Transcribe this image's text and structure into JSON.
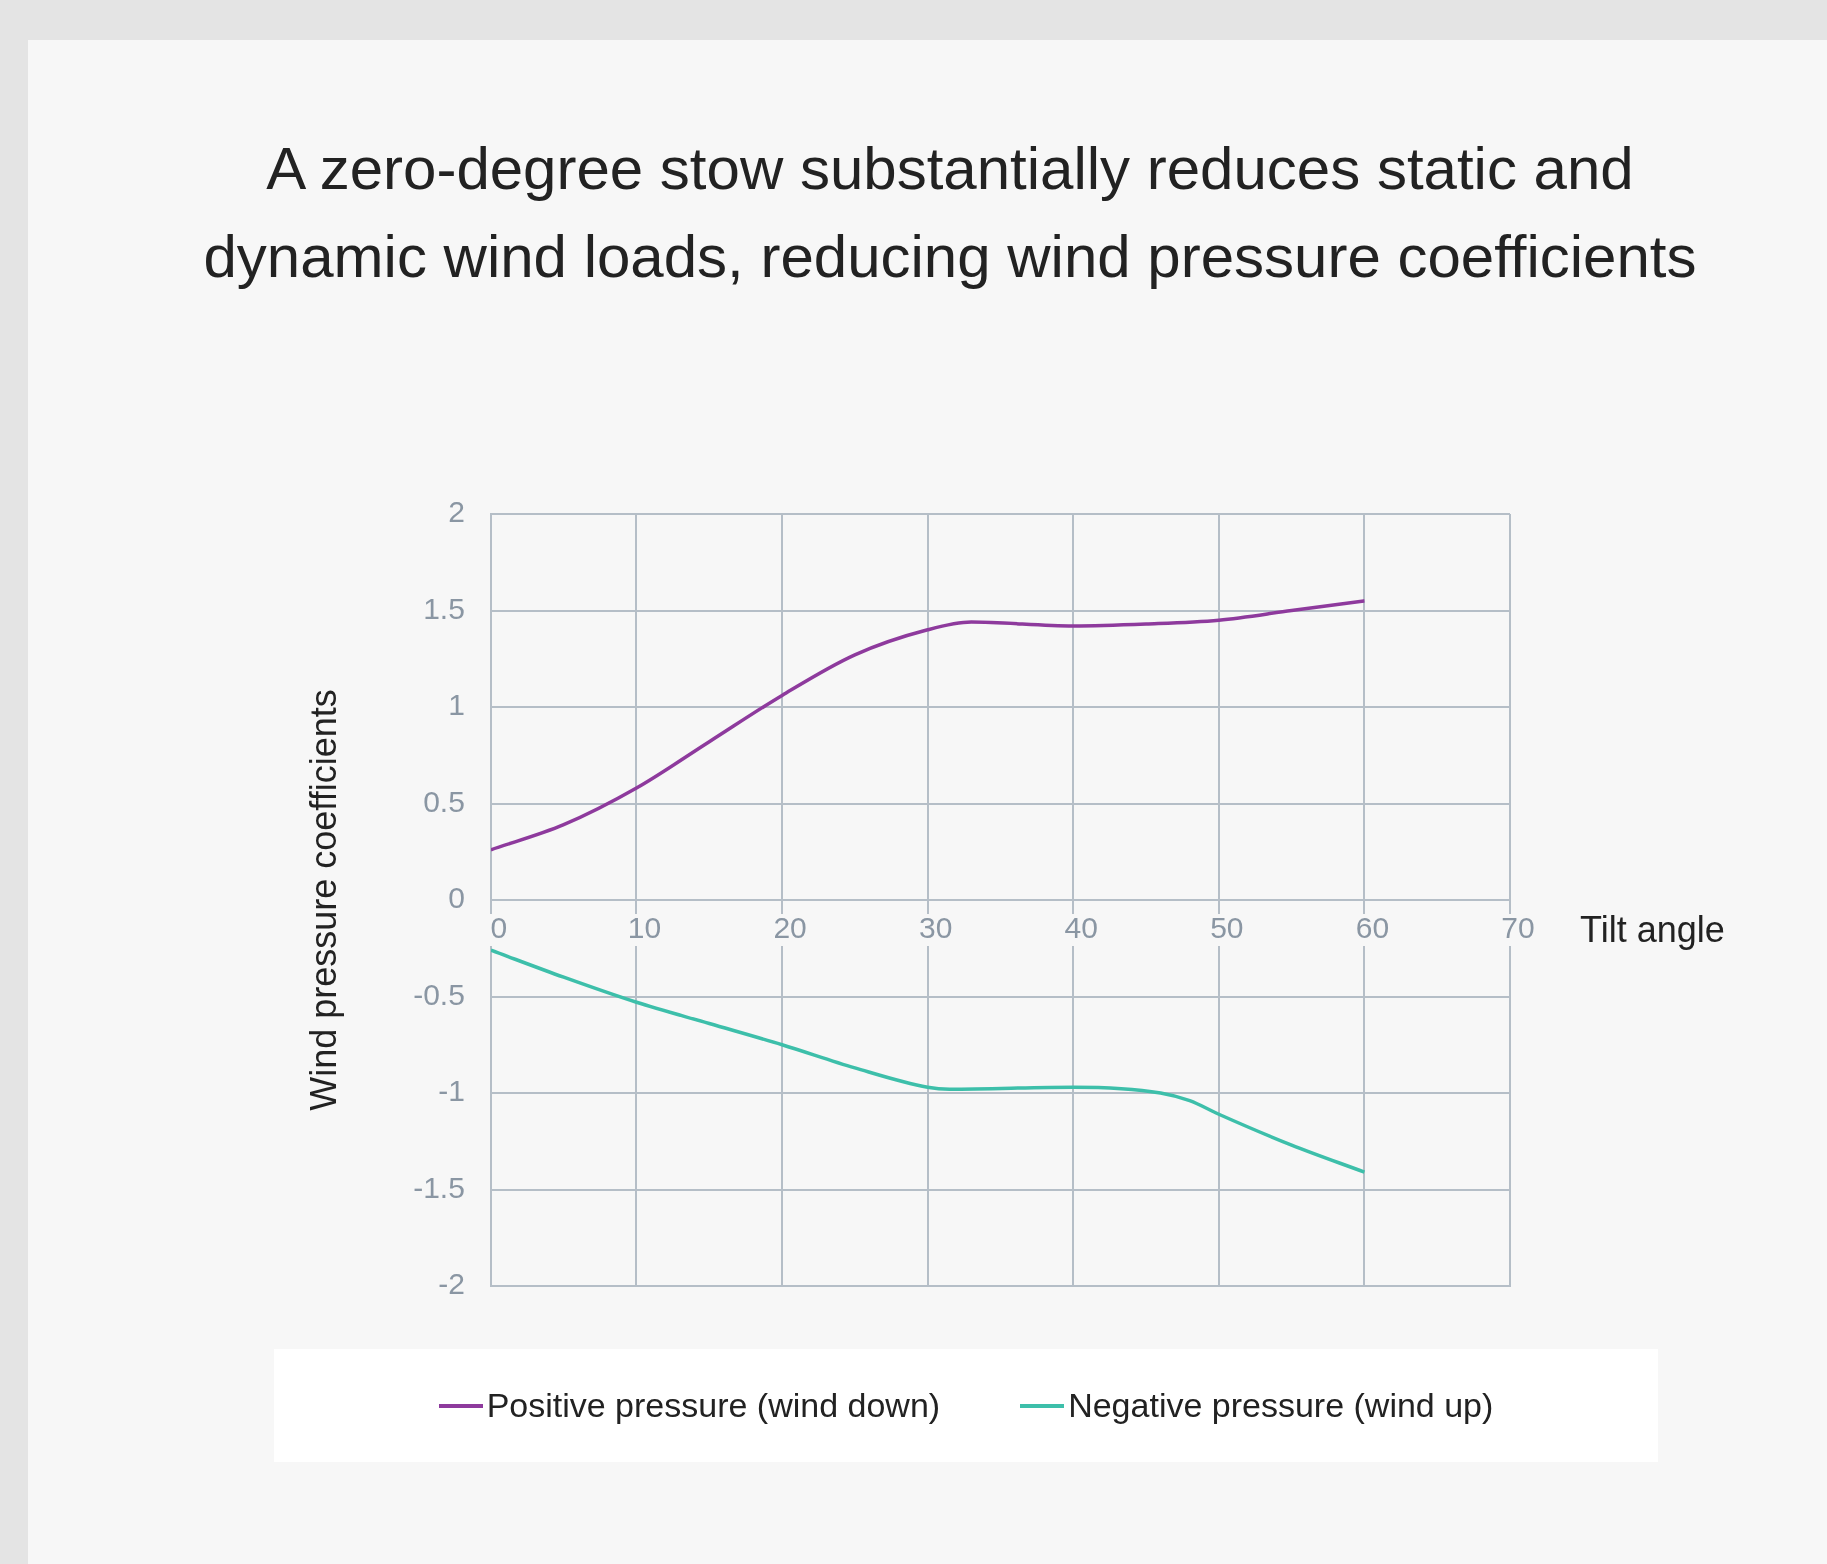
{
  "chart_data": {
    "type": "line",
    "title": "A zero-degree stow substantially reduces static and dynamic wind loads, reducing wind pressure coefficients",
    "xlabel": "Tilt angle",
    "ylabel": "Wind pressure coefficients",
    "x": [
      0,
      5,
      10,
      15,
      20,
      25,
      30,
      33,
      40,
      45,
      50,
      55,
      60
    ],
    "series": [
      {
        "name": "Positive pressure (wind down)",
        "color": "#8e3a9d",
        "values": [
          0.26,
          0.39,
          0.58,
          0.82,
          1.06,
          1.27,
          1.4,
          1.44,
          1.42,
          1.43,
          1.45,
          1.5,
          1.55
        ]
      },
      {
        "name": "Negative pressure (wind up)",
        "color": "#3dbfaa",
        "x": [
          0,
          5,
          10,
          15,
          20,
          25,
          30,
          31.5,
          40,
          46,
          48,
          50,
          55,
          60
        ],
        "values": [
          -0.26,
          -0.4,
          -0.53,
          -0.64,
          -0.75,
          -0.87,
          -0.97,
          -0.98,
          -0.97,
          -1.0,
          -1.04,
          -1.11,
          -1.27,
          -1.41
        ]
      }
    ],
    "xlim": [
      0,
      70
    ],
    "xticks": [
      0,
      10,
      20,
      30,
      40,
      50,
      60,
      70
    ],
    "ylim": [
      -2,
      2
    ],
    "yticks": [
      -2,
      -1.5,
      -1,
      -0.5,
      0,
      0.5,
      1,
      1.5,
      2
    ],
    "grid": true,
    "legend": "bottom",
    "marker": "none",
    "line_style": "solid"
  }
}
